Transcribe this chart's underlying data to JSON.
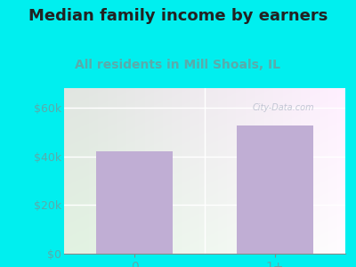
{
  "title": "Median family income by earners",
  "subtitle": "All residents in Mill Shoals, IL",
  "categories": [
    "0",
    "1+"
  ],
  "values": [
    42000,
    52500
  ],
  "bar_color": "#c0aed4",
  "yticks": [
    0,
    20000,
    40000,
    60000
  ],
  "ytick_labels": [
    "$0",
    "$20k",
    "$40k",
    "$60k"
  ],
  "ylim": [
    0,
    68000
  ],
  "title_fontsize": 13,
  "subtitle_fontsize": 10,
  "title_color": "#222222",
  "subtitle_color": "#5aabab",
  "tick_label_color": "#5aabab",
  "outer_bg": "#00efef",
  "watermark": "City-Data.com",
  "watermark_color": "#b0b8c8"
}
